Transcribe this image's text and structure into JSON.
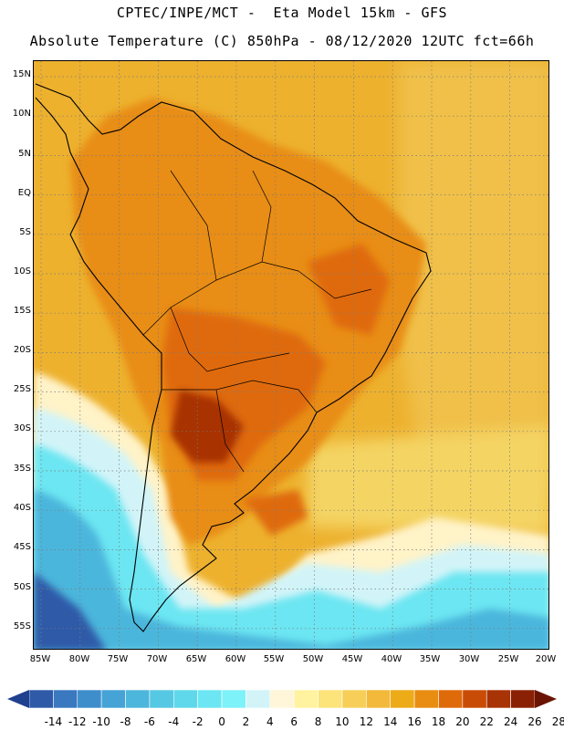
{
  "title_line1": "CPTEC/INPE/MCT -  Eta Model 15km - GFS",
  "title_line2": "Absolute Temperature (C) 850hPa - 08/12/2020 12UTC fct=66h",
  "lat_labels": [
    "15N",
    "10N",
    "5N",
    "EQ",
    "5S",
    "10S",
    "15S",
    "20S",
    "25S",
    "30S",
    "35S",
    "40S",
    "45S",
    "50S",
    "55S"
  ],
  "lon_labels": [
    "85W",
    "80W",
    "75W",
    "70W",
    "65W",
    "60W",
    "55W",
    "50W",
    "45W",
    "40W",
    "35W",
    "30W",
    "25W",
    "20W"
  ],
  "colorbar": {
    "labels": [
      "-14",
      "-12",
      "-10",
      "-8",
      "-6",
      "-4",
      "-2",
      "0",
      "2",
      "4",
      "6",
      "8",
      "10",
      "12",
      "14",
      "16",
      "18",
      "20",
      "22",
      "24",
      "26",
      "28"
    ],
    "colors": [
      "#1f3f8f",
      "#2f5aa8",
      "#3a78c0",
      "#3f8ecc",
      "#45a3d5",
      "#4cb6dc",
      "#55c8e4",
      "#5fd8eb",
      "#6ce6f2",
      "#7df2f8",
      "#d2f4f8",
      "#fff6da",
      "#fff3a0",
      "#fce37a",
      "#f7cf58",
      "#f2b93b",
      "#edab18",
      "#e88d12",
      "#df6a0a",
      "#c94c06",
      "#a83305",
      "#8a2104",
      "#6b1403"
    ]
  },
  "theme": {
    "ocean_warm": "#edb12e",
    "ocean_mid": "#f2cd56",
    "cold": "#5fd8eb",
    "coast": "#000000"
  }
}
